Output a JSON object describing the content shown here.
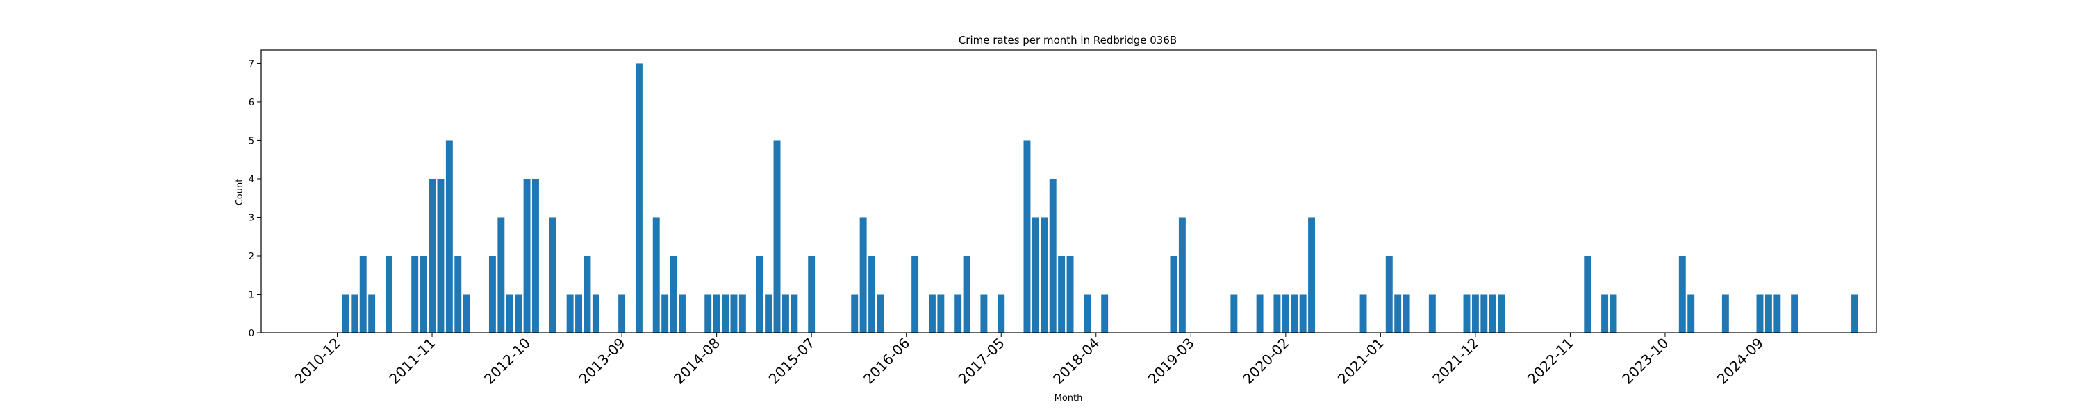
{
  "chart_data": {
    "type": "bar",
    "title": "Crime rates per month in Redbridge 036B",
    "xlabel": "Month",
    "ylabel": "Count",
    "ylim": [
      0,
      7.35
    ],
    "grid": false,
    "bar_color": "#1f77b4",
    "x_tick_labels": [
      "2010-12",
      "2011-11",
      "2012-10",
      "2013-09",
      "2014-08",
      "2015-07",
      "2016-06",
      "2017-05",
      "2018-04",
      "2019-03",
      "2020-02",
      "2021-01",
      "2021-12",
      "2022-11",
      "2023-10",
      "2024-09"
    ],
    "y_ticks": [
      0,
      1,
      2,
      3,
      4,
      5,
      6,
      7
    ],
    "categories": [
      "2011-01",
      "2011-02",
      "2011-03",
      "2011-04",
      "2011-06",
      "2011-09",
      "2011-10",
      "2011-11",
      "2011-12",
      "2012-01",
      "2012-02",
      "2012-03",
      "2012-06",
      "2012-07",
      "2012-08",
      "2012-09",
      "2012-10",
      "2012-11",
      "2013-01",
      "2013-03",
      "2013-04",
      "2013-05",
      "2013-06",
      "2013-09",
      "2013-11",
      "2014-01",
      "2014-02",
      "2014-03",
      "2014-04",
      "2014-07",
      "2014-08",
      "2014-09",
      "2014-10",
      "2014-11",
      "2015-01",
      "2015-02",
      "2015-03",
      "2015-04",
      "2015-05",
      "2015-07",
      "2015-12",
      "2016-01",
      "2016-02",
      "2016-03",
      "2016-07",
      "2016-09",
      "2016-10",
      "2016-12",
      "2017-01",
      "2017-03",
      "2017-05",
      "2017-08",
      "2017-09",
      "2017-10",
      "2017-11",
      "2017-12",
      "2018-01",
      "2018-03",
      "2018-05",
      "2019-01",
      "2019-02",
      "2019-08",
      "2019-11",
      "2020-01",
      "2020-02",
      "2020-03",
      "2020-04",
      "2020-05",
      "2020-11",
      "2021-02",
      "2021-03",
      "2021-04",
      "2021-07",
      "2021-11",
      "2021-12",
      "2022-01",
      "2022-02",
      "2022-03",
      "2023-01",
      "2023-03",
      "2023-04",
      "2023-12",
      "2024-01",
      "2024-05",
      "2024-09",
      "2024-10",
      "2024-11",
      "2025-01",
      "2025-08"
    ],
    "values": [
      1,
      1,
      2,
      1,
      2,
      2,
      2,
      4,
      4,
      5,
      2,
      1,
      2,
      3,
      1,
      1,
      4,
      4,
      3,
      1,
      1,
      2,
      1,
      1,
      7,
      3,
      1,
      2,
      1,
      1,
      1,
      1,
      1,
      1,
      2,
      1,
      5,
      1,
      1,
      2,
      1,
      3,
      2,
      1,
      2,
      1,
      1,
      1,
      2,
      1,
      1,
      5,
      3,
      3,
      4,
      2,
      2,
      1,
      1,
      2,
      3,
      1,
      1,
      1,
      1,
      1,
      1,
      3,
      1,
      2,
      1,
      1,
      1,
      1,
      1,
      1,
      1,
      1,
      2,
      1,
      1,
      2,
      1,
      1,
      1,
      1,
      1,
      1,
      1
    ]
  }
}
